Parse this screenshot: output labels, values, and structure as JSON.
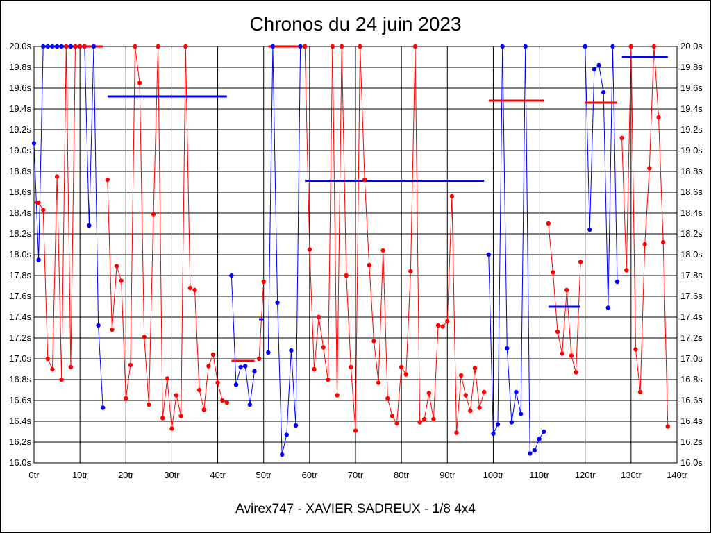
{
  "chart_data": {
    "type": "line",
    "title": "Chronos du 24 juin 2023",
    "footer": "Avirex747 - XAVIER SADREUX - 1/8 4x4",
    "xlabel": "",
    "ylabel": "",
    "xlim": [
      0,
      140
    ],
    "ylim": [
      16.0,
      20.0
    ],
    "x_ticks": [
      0,
      10,
      20,
      30,
      40,
      50,
      60,
      70,
      80,
      90,
      100,
      110,
      120,
      130,
      140
    ],
    "x_tick_labels": [
      "0tr",
      "10tr",
      "20tr",
      "30tr",
      "40tr",
      "50tr",
      "60tr",
      "70tr",
      "80tr",
      "90tr",
      "100tr",
      "110tr",
      "120tr",
      "130tr",
      "140tr"
    ],
    "y_ticks": [
      16.0,
      16.2,
      16.4,
      16.6,
      16.8,
      17.0,
      17.2,
      17.4,
      17.6,
      17.8,
      18.0,
      18.2,
      18.4,
      18.6,
      18.8,
      19.0,
      19.2,
      19.4,
      19.6,
      19.8,
      20.0
    ],
    "y_tick_labels": [
      "16.0s",
      "16.2s",
      "16.4s",
      "16.6s",
      "16.8s",
      "17.0s",
      "17.2s",
      "17.4s",
      "17.6s",
      "17.8s",
      "18.0s",
      "18.2s",
      "18.4s",
      "18.6s",
      "18.8s",
      "19.0s",
      "19.2s",
      "19.4s",
      "19.6s",
      "19.8s",
      "20.0s"
    ],
    "grid": true,
    "colors": {
      "red": "#ff0000",
      "blue": "#0000ff"
    },
    "series": [
      {
        "name": "run-blue-1",
        "color": "blue",
        "start": 0,
        "values": [
          19.07,
          17.95,
          20.0,
          20.0,
          20.0,
          20.0,
          20.0,
          20.0,
          20.0,
          20.0,
          20.0,
          20.0,
          18.28,
          20.0,
          17.32,
          16.53
        ]
      },
      {
        "name": "run-red-1",
        "color": "red",
        "start": 1,
        "values": [
          18.5,
          18.43,
          17.0,
          16.9,
          18.75,
          16.8,
          20.0,
          16.92,
          20.0,
          20.0,
          20.0
        ]
      },
      {
        "name": "run-red-2",
        "color": "red",
        "start": 16,
        "values": [
          18.72,
          17.28,
          17.89,
          17.75,
          16.62,
          16.94,
          20.0,
          19.65,
          17.21,
          16.56,
          18.39,
          20.0,
          16.43,
          16.81,
          16.33,
          16.65,
          16.45,
          20.0,
          17.68,
          17.66,
          16.7,
          16.51,
          16.93,
          17.04,
          16.77,
          16.6,
          16.58
        ]
      },
      {
        "name": "run-blue-2",
        "color": "blue",
        "start": 43,
        "values": [
          17.8,
          16.75,
          16.92,
          16.93,
          16.56,
          16.88
        ]
      },
      {
        "name": "run-red-3",
        "color": "red",
        "start": 49,
        "values": [
          17.0,
          17.74
        ]
      },
      {
        "name": "run-blue-3",
        "color": "blue",
        "start": 51,
        "values": [
          17.06,
          20.0,
          17.54,
          16.08,
          16.27,
          17.08,
          16.36,
          20.0,
          20.0
        ]
      },
      {
        "name": "run-red-4",
        "color": "red",
        "start": 59,
        "values": [
          20.0,
          18.05,
          16.9,
          17.4,
          17.11,
          16.8,
          20.0,
          16.65,
          20.0,
          17.8,
          16.92,
          16.31,
          20.0,
          18.72,
          17.9,
          17.17,
          16.77,
          18.04,
          16.62,
          16.45,
          16.38,
          16.92,
          16.85,
          17.84,
          20.0,
          16.39,
          16.42,
          16.67,
          16.42,
          17.32,
          17.31,
          17.36,
          18.56,
          16.29,
          16.84,
          16.65,
          16.5,
          16.91,
          16.53,
          16.68
        ]
      },
      {
        "name": "run-blue-4",
        "color": "blue",
        "start": 99,
        "values": [
          18.0,
          16.28,
          16.37,
          20.0,
          17.1,
          16.39,
          16.68,
          16.47,
          20.0,
          16.09,
          16.12,
          16.23,
          16.3
        ]
      },
      {
        "name": "run-red-5",
        "color": "red",
        "start": 112,
        "values": [
          18.3,
          17.83,
          17.26,
          17.05,
          17.66,
          17.03,
          16.87,
          17.93
        ]
      },
      {
        "name": "run-blue-5",
        "color": "blue",
        "start": 120,
        "values": [
          20.0,
          18.24,
          19.78,
          19.82,
          19.56,
          17.49,
          20.0,
          17.74
        ]
      },
      {
        "name": "run-red-6",
        "color": "red",
        "start": 128,
        "values": [
          19.12,
          17.85,
          20.0,
          17.09,
          16.68,
          18.1,
          18.83,
          20.0,
          19.32,
          18.12,
          16.35
        ]
      }
    ],
    "averages": [
      {
        "color": "red",
        "x_start": 0,
        "x_end": 1,
        "value": 18.5
      },
      {
        "color": "blue",
        "x_start": 2,
        "x_end": 13,
        "value": 20.0
      },
      {
        "color": "red",
        "x_start": 11,
        "x_end": 15,
        "value": 20.0
      },
      {
        "color": "blue",
        "x_start": 16,
        "x_end": 42,
        "value": 19.52
      },
      {
        "color": "red",
        "x_start": 43,
        "x_end": 48,
        "value": 16.98
      },
      {
        "color": "blue",
        "x_start": 49,
        "x_end": 50,
        "value": 17.38
      },
      {
        "color": "red",
        "x_start": 51,
        "x_end": 58,
        "value": 20.0
      },
      {
        "color": "blue",
        "x_start": 59,
        "x_end": 98,
        "value": 18.71
      },
      {
        "color": "red",
        "x_start": 99,
        "x_end": 111,
        "value": 19.48
      },
      {
        "color": "blue",
        "x_start": 112,
        "x_end": 119,
        "value": 17.5
      },
      {
        "color": "red",
        "x_start": 120,
        "x_end": 127,
        "value": 19.46
      },
      {
        "color": "blue",
        "x_start": 128,
        "x_end": 138,
        "value": 19.9
      }
    ]
  }
}
